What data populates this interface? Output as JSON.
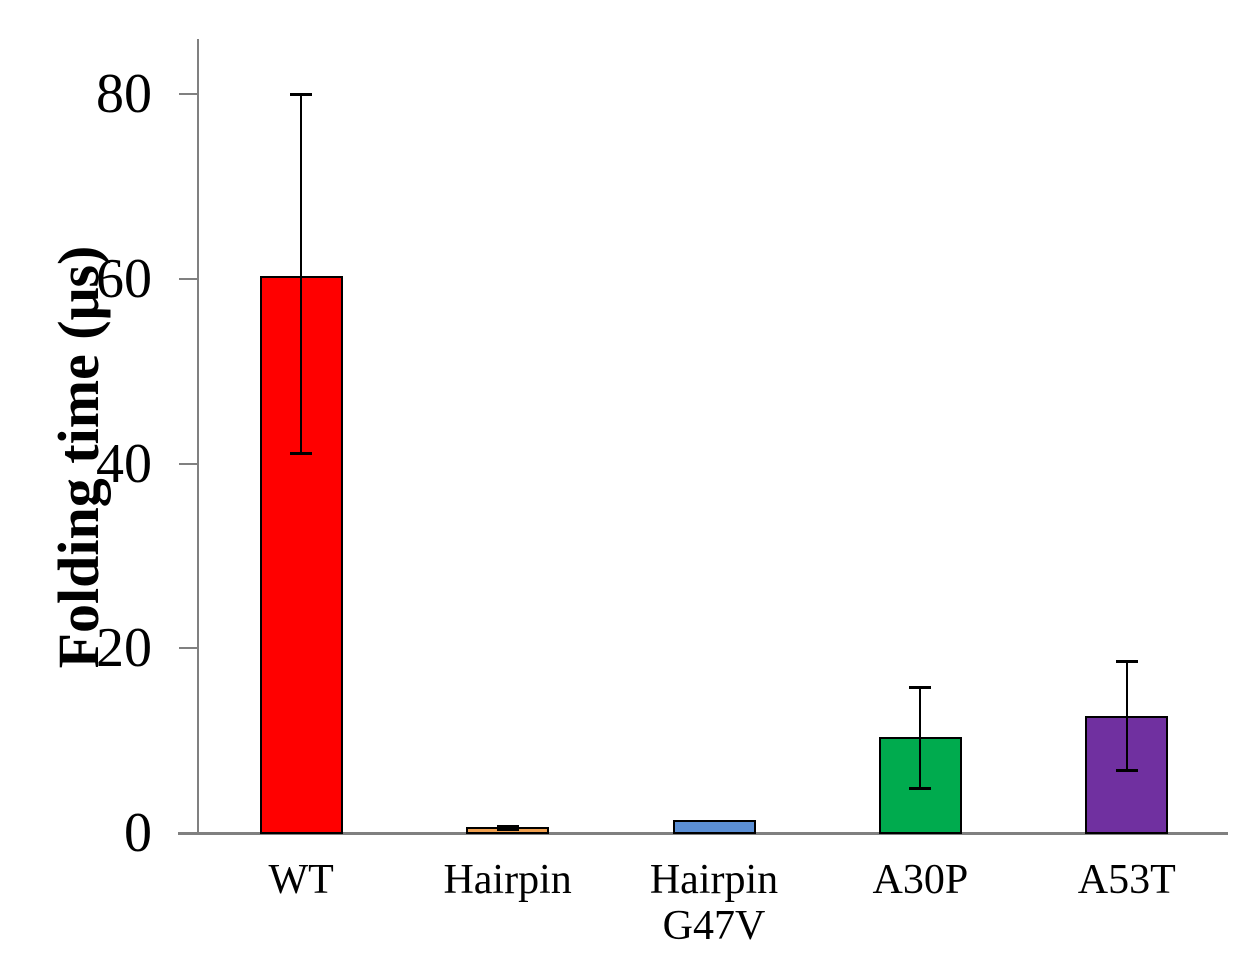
{
  "chart_data": {
    "type": "bar",
    "title": "",
    "xlabel": "",
    "ylabel": "Folding time (μs)",
    "categories": [
      "WT",
      "Hairpin",
      "Hairpin G47V",
      "A30P",
      "A53T"
    ],
    "category_label_lines": [
      [
        "WT"
      ],
      [
        "Hairpin"
      ],
      [
        "Hairpin",
        "G47V"
      ],
      [
        "A30P"
      ],
      [
        "A53T"
      ]
    ],
    "values": [
      60.3,
      0.6,
      1.4,
      10.4,
      12.7
    ],
    "error_bars": [
      {
        "low": 41.0,
        "high": 80.0
      },
      {
        "low": 0.3,
        "high": 0.8
      },
      null,
      {
        "low": 4.8,
        "high": 15.8
      },
      {
        "low": 6.7,
        "high": 18.6
      }
    ],
    "bar_colors": [
      "#FF0000",
      "#F0A050",
      "#5B8FD5",
      "#00AB4E",
      "#7030A0"
    ],
    "bar_edge_color": "#000000",
    "error_bar_color": "#000000",
    "axis_color": "#808080",
    "yticks": [
      0,
      20,
      40,
      60,
      80
    ],
    "y_tick_labels": [
      "0",
      "20",
      "40",
      "60",
      "80"
    ],
    "ylim": [
      0,
      86
    ],
    "grid": false,
    "legend": null
  }
}
